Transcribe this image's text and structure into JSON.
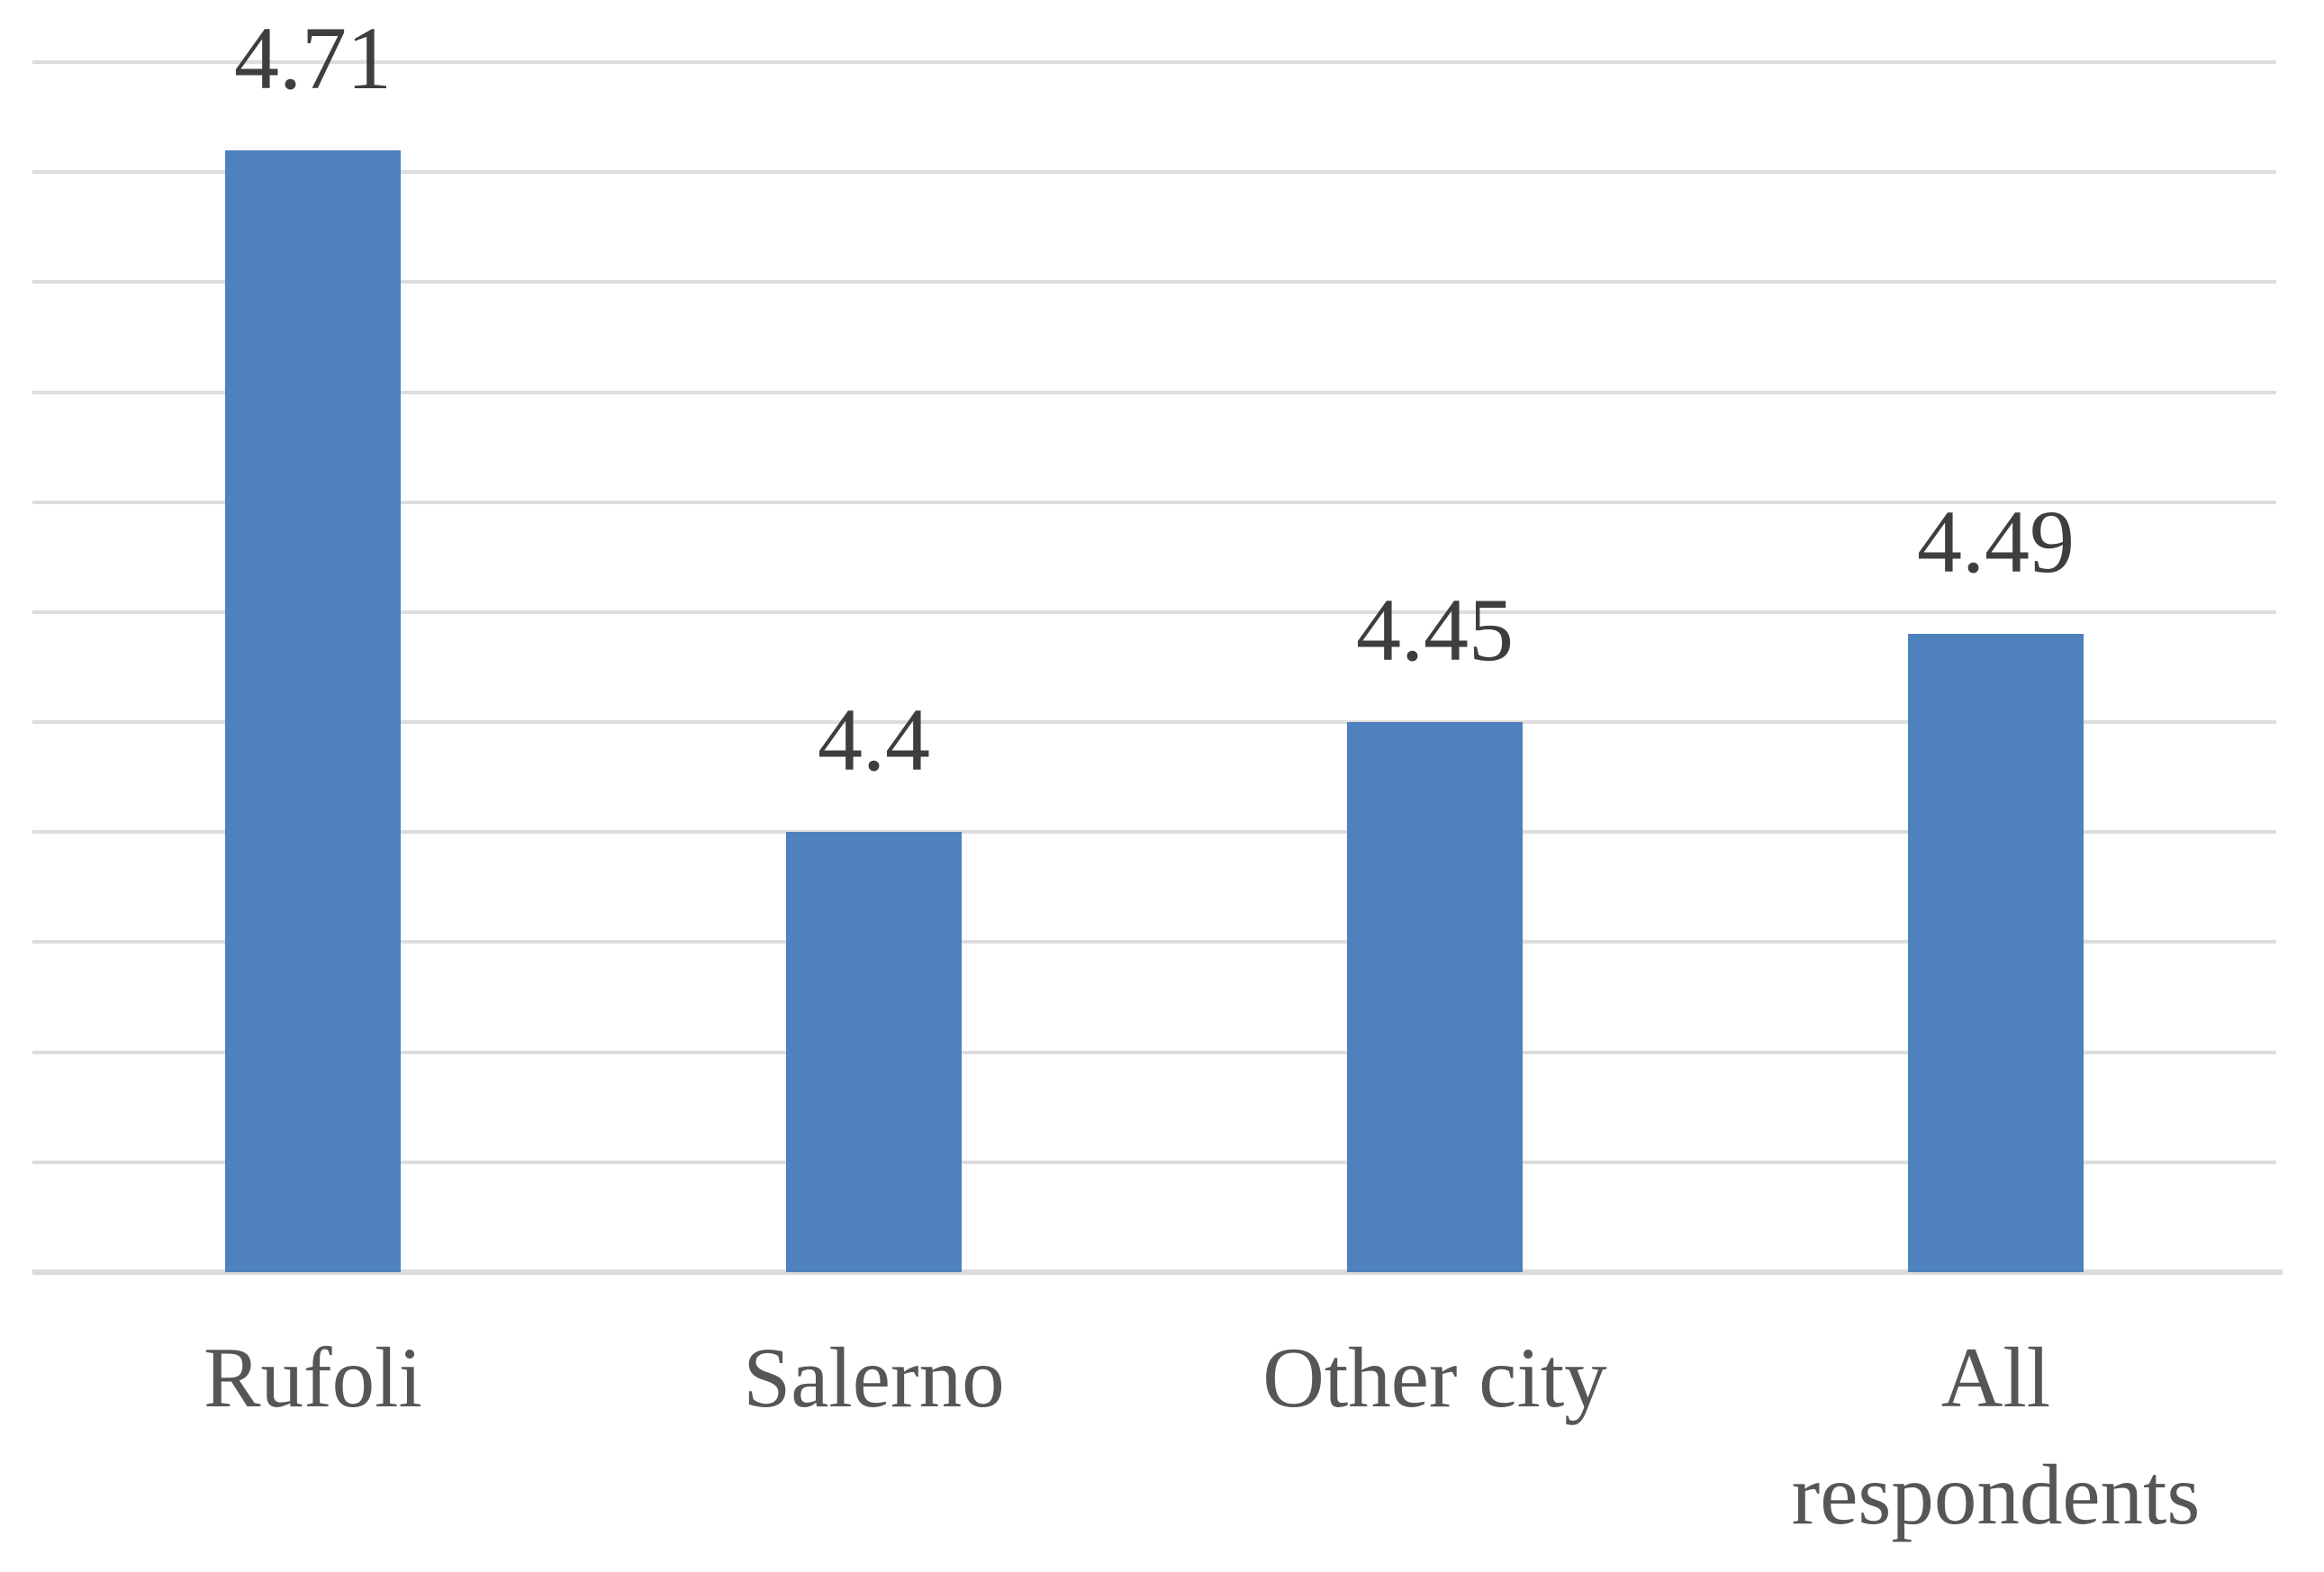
{
  "chart_data": {
    "type": "bar",
    "title": "",
    "xlabel": "",
    "ylabel": "",
    "categories": [
      "Rufoli",
      "Salerno",
      "Other city",
      "All respondents"
    ],
    "values": [
      4.71,
      4.4,
      4.45,
      4.49
    ],
    "value_labels": [
      "4.71",
      "4.4",
      "4.45",
      "4.49"
    ],
    "series_name": "",
    "ylim": [
      4.2,
      4.75
    ],
    "gridline_step": 0.05,
    "grid": "horizontal-only",
    "legend_position": "none",
    "y_axis_tick_labels_visible": false,
    "colors": {
      "bar": "#4E81BD",
      "gridline": "#DDDDDD",
      "axis_line": "#DBDBDB",
      "value_label_text": "#3E3E3E",
      "category_label_text": "#565656",
      "background": "#FFFFFF"
    }
  }
}
